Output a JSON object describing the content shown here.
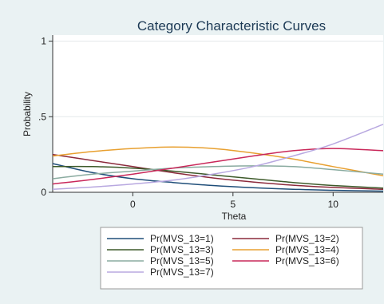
{
  "chart_data": {
    "type": "line",
    "title": "Category Characteristic Curves",
    "xlabel": "Theta",
    "ylabel": "Probability",
    "xlim": [
      -4,
      12.5
    ],
    "ylim": [
      0,
      1.04
    ],
    "xticks": [
      0,
      5,
      10
    ],
    "xtick_labels": [
      "0",
      "5",
      "10"
    ],
    "yticks": [
      0,
      0.5,
      1
    ],
    "ytick_labels": [
      "0",
      ".5",
      "1"
    ],
    "grid": true,
    "legend_position": "bottom",
    "series": [
      {
        "name": "Pr(MVS_13=1)",
        "color": "#1f4e79",
        "x": [
          -4,
          -2,
          0,
          2,
          4,
          6,
          8,
          10,
          12.5
        ],
        "y": [
          0.19,
          0.13,
          0.09,
          0.065,
          0.045,
          0.03,
          0.02,
          0.013,
          0.008
        ]
      },
      {
        "name": "Pr(MVS_13=2)",
        "color": "#8c2a3c",
        "x": [
          -4,
          -2,
          0,
          2,
          4,
          6,
          8,
          10,
          12.5
        ],
        "y": [
          0.25,
          0.21,
          0.17,
          0.13,
          0.095,
          0.068,
          0.047,
          0.032,
          0.02
        ]
      },
      {
        "name": "Pr(MVS_13=3)",
        "color": "#3d5a2a",
        "x": [
          -4,
          -2,
          0,
          2,
          4,
          6,
          8,
          10,
          12.5
        ],
        "y": [
          0.17,
          0.17,
          0.16,
          0.14,
          0.115,
          0.09,
          0.065,
          0.045,
          0.028
        ]
      },
      {
        "name": "Pr(MVS_13=4)",
        "color": "#e8a030",
        "x": [
          -4,
          -2,
          0,
          2,
          4,
          6,
          8,
          10,
          12.5
        ],
        "y": [
          0.24,
          0.27,
          0.29,
          0.3,
          0.29,
          0.26,
          0.22,
          0.17,
          0.11
        ]
      },
      {
        "name": "Pr(MVS_13=5)",
        "color": "#8aaba0",
        "x": [
          -4,
          -2,
          0,
          2,
          4,
          6,
          8,
          10,
          12.5
        ],
        "y": [
          0.09,
          0.12,
          0.14,
          0.16,
          0.17,
          0.175,
          0.17,
          0.15,
          0.12
        ]
      },
      {
        "name": "Pr(MVS_13=6)",
        "color": "#c9285a",
        "x": [
          -4,
          -2,
          0,
          2,
          4,
          6,
          8,
          10,
          12.5
        ],
        "y": [
          0.055,
          0.085,
          0.12,
          0.16,
          0.2,
          0.24,
          0.275,
          0.29,
          0.275
        ]
      },
      {
        "name": "Pr(MVS_13=7)",
        "color": "#b8a8e0",
        "x": [
          -4,
          -2,
          0,
          2,
          4,
          6,
          8,
          10,
          12.5
        ],
        "y": [
          0.02,
          0.035,
          0.055,
          0.08,
          0.12,
          0.17,
          0.24,
          0.32,
          0.45
        ]
      }
    ]
  }
}
